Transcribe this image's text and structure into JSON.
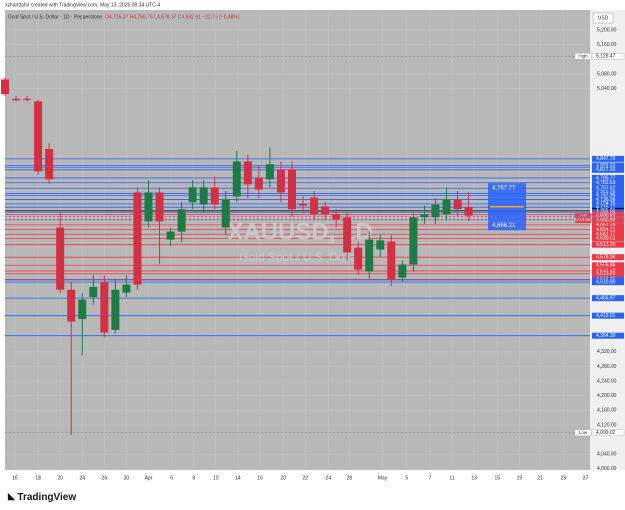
{
  "header": {
    "credit": "xzhanttahir created with TradingView.com, May 13, 2026 08:34 UTC-4",
    "symbol": "Gold Spot / U.S. Dollar · 1D · Pepperstone",
    "ohlc": "O4,715.37 H4,756.76 L4,678.37 C4,692.61 −22.76 (−0.48%)"
  },
  "currency": "USD",
  "chart_data": {
    "type": "candlestick",
    "watermark": "XAUUSD, 1D",
    "watermark_sub": "Gold Spot / U.S. Dollar",
    "xlim": [
      0,
      53
    ],
    "xticks": [
      {
        "value": 0.9,
        "label": "16"
      },
      {
        "value": 3,
        "label": "18"
      },
      {
        "value": 5,
        "label": "20"
      },
      {
        "value": 7,
        "label": "24"
      },
      {
        "value": 9,
        "label": "26"
      },
      {
        "value": 11,
        "label": "30"
      },
      {
        "value": 13,
        "label": "Apr"
      },
      {
        "value": 15.1,
        "label": "6"
      },
      {
        "value": 17.1,
        "label": "8"
      },
      {
        "value": 19.1,
        "label": "10"
      },
      {
        "value": 21.1,
        "label": "14"
      },
      {
        "value": 23.1,
        "label": "16"
      },
      {
        "value": 25.2,
        "label": "20"
      },
      {
        "value": 27.2,
        "label": "22"
      },
      {
        "value": 29.3,
        "label": "24"
      },
      {
        "value": 31.2,
        "label": "28"
      },
      {
        "value": 34.2,
        "label": "May"
      },
      {
        "value": 36.4,
        "label": "5"
      },
      {
        "value": 38.5,
        "label": "7"
      },
      {
        "value": 40.5,
        "label": "11"
      },
      {
        "value": 42.5,
        "label": "13"
      },
      {
        "value": 44.6,
        "label": "15"
      },
      {
        "value": 46.6,
        "label": "19"
      },
      {
        "value": 48.5,
        "label": "21"
      },
      {
        "value": 50.6,
        "label": "25"
      },
      {
        "value": 52.6,
        "label": "27"
      }
    ],
    "ylim": [
      3997,
      5255
    ],
    "yticks": [
      {
        "value": 5200,
        "label": "5,200.00"
      },
      {
        "value": 5160,
        "label": "5,160.00"
      },
      {
        "value": 5080,
        "label": "5,080.00"
      },
      {
        "value": 5040,
        "label": "5,040.00"
      },
      {
        "value": 4320,
        "label": "4,320.00"
      },
      {
        "value": 4280,
        "label": "4,280.00"
      },
      {
        "value": 4240,
        "label": "4,240.00"
      },
      {
        "value": 4200,
        "label": "4,200.00"
      },
      {
        "value": 4160,
        "label": "4,160.00"
      },
      {
        "value": 4120,
        "label": "4,120.00"
      },
      {
        "value": 4040,
        "label": "4,040.00"
      },
      {
        "value": 4000,
        "label": "4,000.00"
      }
    ],
    "grid": true,
    "up_color": "#1e7b45",
    "down_color": "#d23043",
    "x": [
      0,
      1,
      2,
      3,
      4,
      5,
      6,
      7,
      8,
      9,
      10,
      11,
      12,
      13,
      14,
      15,
      16,
      17,
      18,
      19,
      20,
      21,
      22,
      23,
      24,
      25,
      26,
      27,
      28,
      29,
      30,
      31,
      32,
      33,
      34,
      35,
      36,
      37,
      38,
      39,
      40,
      41,
      42
    ],
    "series": [
      {
        "name": "Open",
        "values": [
          5065,
          5012,
          5012,
          5005,
          4875,
          4660,
          4490,
          4410,
          4470,
          4510,
          4380,
          4482,
          4756,
          4677,
          4756,
          4627,
          4649,
          4729,
          4723,
          4770,
          4660,
          4745,
          4841,
          4797,
          4792,
          4819,
          4819,
          4725,
          4742,
          4718,
          4696,
          4688,
          4605,
          4540,
          4600,
          4622,
          4523,
          4559,
          4688,
          4688,
          4696,
          4737,
          4715.37
        ]
      },
      {
        "name": "High",
        "values": [
          5070,
          5020,
          5020,
          5010,
          4890,
          4700,
          4510,
          4480,
          4530,
          4530,
          4520,
          4530,
          4770,
          4790,
          4770,
          4660,
          4730,
          4790,
          4790,
          4800,
          4760,
          4870,
          4860,
          4830,
          4880,
          4840,
          4840,
          4745,
          4760,
          4730,
          4710,
          4700,
          4620,
          4650,
          4640,
          4640,
          4570,
          4700,
          4720,
          4740,
          4770,
          4760,
          4756.76
        ]
      },
      {
        "name": "Low",
        "values": [
          5020,
          5005,
          5005,
          4805,
          4780,
          4480,
          4093,
          4310,
          4450,
          4360,
          4370,
          4470,
          4490,
          4660,
          4560,
          4610,
          4620,
          4710,
          4700,
          4710,
          4640,
          4730,
          4740,
          4740,
          4770,
          4730,
          4690,
          4700,
          4680,
          4680,
          4660,
          4570,
          4530,
          4520,
          4580,
          4500,
          4510,
          4540,
          4670,
          4670,
          4680,
          4690,
          4678.37
        ]
      },
      {
        "name": "Close",
        "values": [
          5025,
          5008,
          5009,
          4814,
          4792,
          4490,
          4403,
          4463,
          4498,
          4373,
          4490,
          4504,
          4504,
          4756,
          4677,
          4649,
          4710,
          4770,
          4770,
          4723,
          4737,
          4841,
          4778,
          4764,
          4833,
          4756,
          4710,
          4720,
          4696,
          4696,
          4682,
          4592,
          4545,
          4627,
          4625,
          4518,
          4559,
          4688,
          4696,
          4723,
          4737,
          4710,
          4692.61
        ]
      }
    ],
    "levels": [
      {
        "value": 4847.79,
        "label": "4,847.79",
        "color": "#2962ff"
      },
      {
        "value": 4829.74,
        "label": "4,829.74",
        "color": "#2962ff"
      },
      {
        "value": 4824.91,
        "label": "4,824.91",
        "color": "#2962ff"
      },
      {
        "value": 4817.93,
        "label": "4,817.93",
        "color": "#2962ff"
      },
      {
        "value": 4795.77,
        "label": "4,795.77",
        "color": "#2962ff"
      },
      {
        "value": 4782.63,
        "label": "4,782.63",
        "color": "#2962ff"
      },
      {
        "value": 4767.62,
        "label": "4,767.62",
        "color": "#2962ff"
      },
      {
        "value": 4753.39,
        "label": "4,753.39",
        "color": "#2962ff"
      },
      {
        "value": 4747.96,
        "label": "4,747.96",
        "color": "#2962ff"
      },
      {
        "value": 4736.56,
        "label": "4,736.56",
        "color": "#2962ff"
      },
      {
        "value": 4724.76,
        "label": "4,724.76",
        "color": "#2962ff"
      },
      {
        "value": 4715.77,
        "label": "4,715.77",
        "color": "#2962ff"
      },
      {
        "value": 4705.81,
        "label": "4,705.81",
        "color": "#131722"
      },
      {
        "value": 4701.91,
        "label": "4,701.91",
        "color": "#2962ff"
      },
      {
        "value": 4696.03,
        "label": "4,696.03",
        "color": "#f23645"
      },
      {
        "value": 4667.28,
        "label": "4,667.28",
        "color": "#f23645"
      },
      {
        "value": 4654.71,
        "label": "4,654.71",
        "color": "#f23645"
      },
      {
        "value": 4641.77,
        "label": "4,641.77",
        "color": "#f23645"
      },
      {
        "value": 4630.51,
        "label": "4,630.51",
        "color": "#f23645"
      },
      {
        "value": 4613.2,
        "label": "4,613.20",
        "color": "#f23645"
      },
      {
        "value": 4578.94,
        "label": "4,578.94",
        "color": "#f23645"
      },
      {
        "value": 4556.86,
        "label": "4,556.86",
        "color": "#f23645"
      },
      {
        "value": 4541.4,
        "label": "4,541.40",
        "color": "#f23645"
      },
      {
        "value": 4533.69,
        "label": "4,533.69",
        "color": "#f23645"
      },
      {
        "value": 4518.27,
        "label": "4,518.27",
        "color": "#f23645"
      },
      {
        "value": 4516.71,
        "label": "4,516.71",
        "color": "#2962ff"
      },
      {
        "value": 4510.8,
        "label": "4,510.80",
        "color": "#2962ff"
      },
      {
        "value": 4466.97,
        "label": "4,466.97",
        "color": "#2962ff"
      },
      {
        "value": 4419.01,
        "label": "4,419.01",
        "color": "#2962ff"
      },
      {
        "value": 4364.3,
        "label": "4,364.30",
        "color": "#2962ff"
      }
    ],
    "markers": [
      {
        "name": "High",
        "value": 5128.47,
        "label": "5,128.47",
        "color": "#ffffff"
      },
      {
        "name": "Ask",
        "value": 4690.82,
        "label": "4,690.82",
        "color": "#f23645"
      },
      {
        "name": "Bid",
        "value": 4682.64,
        "label": "4,682.64",
        "color": "#2962ff"
      },
      {
        "name": "XAUUSD",
        "value": 4680.8,
        "label": "4,680.80",
        "color": "#f23645"
      },
      {
        "name": "Low",
        "value": 4099.02,
        "label": "4,099.02",
        "color": "#ffffff"
      }
    ],
    "annotations": [
      {
        "value": 4767.77,
        "label": "4,767.77"
      },
      {
        "value": 4666.21,
        "label": "4,666.21"
      }
    ]
  },
  "footer": {
    "brand": "TradingView"
  }
}
